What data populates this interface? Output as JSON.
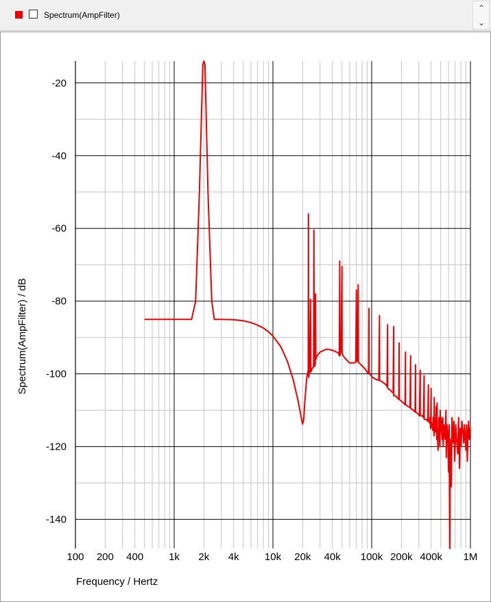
{
  "legend": {
    "label": "Spectrum(AmpFilter)",
    "swatch_color": "#ee0000",
    "scroll_up_glyph": "⌃",
    "scroll_down_glyph": "⌄"
  },
  "chart_data": {
    "type": "line",
    "xlabel": "Frequency / Hertz",
    "ylabel": "Spectrum(AmpFilter) / dB",
    "xscale": "log",
    "xlim": [
      100,
      1000000
    ],
    "ylim": [
      -148,
      -14
    ],
    "grid": true,
    "line_color": "#ee0000",
    "x_ticks": [
      {
        "value": 100,
        "label": "100"
      },
      {
        "value": 200,
        "label": "200"
      },
      {
        "value": 400,
        "label": "400"
      },
      {
        "value": 1000,
        "label": "1k"
      },
      {
        "value": 2000,
        "label": "2k"
      },
      {
        "value": 4000,
        "label": "4k"
      },
      {
        "value": 10000,
        "label": "10k"
      },
      {
        "value": 20000,
        "label": "20k"
      },
      {
        "value": 40000,
        "label": "40k"
      },
      {
        "value": 100000,
        "label": "100k"
      },
      {
        "value": 200000,
        "label": "200k"
      },
      {
        "value": 400000,
        "label": "400k"
      },
      {
        "value": 1000000,
        "label": "1M"
      }
    ],
    "y_ticks": [
      {
        "value": -20,
        "label": "-20"
      },
      {
        "value": -40,
        "label": "-40"
      },
      {
        "value": -60,
        "label": "-60"
      },
      {
        "value": -80,
        "label": "-80"
      },
      {
        "value": -100,
        "label": "-100"
      },
      {
        "value": -120,
        "label": "-120"
      },
      {
        "value": -140,
        "label": "-140"
      }
    ],
    "series": [
      {
        "points": [
          [
            500,
            -85
          ],
          [
            1000,
            -85
          ],
          [
            1300,
            -85
          ],
          [
            1500,
            -85
          ],
          [
            1650,
            -80
          ],
          [
            1800,
            -50
          ],
          [
            1950,
            -15
          ],
          [
            2000,
            -13.5
          ],
          [
            2050,
            -15
          ],
          [
            2200,
            -50
          ],
          [
            2400,
            -80
          ],
          [
            2550,
            -85
          ],
          [
            3000,
            -85
          ],
          [
            4000,
            -85.1
          ],
          [
            5000,
            -85.4
          ],
          [
            6000,
            -85.9
          ],
          [
            7000,
            -86.6
          ],
          [
            8000,
            -87.4
          ],
          [
            9000,
            -88.4
          ],
          [
            10000,
            -89.6
          ],
          [
            12000,
            -92.5
          ],
          [
            14000,
            -96.5
          ],
          [
            16000,
            -101.5
          ],
          [
            18000,
            -107.5
          ],
          [
            19500,
            -112.5
          ],
          [
            20000,
            -113.8
          ],
          [
            20500,
            -112.5
          ],
          [
            21000,
            -108
          ],
          [
            22000,
            -101
          ],
          [
            22800,
            -99
          ],
          [
            22900,
            -56
          ],
          [
            23000,
            -101
          ],
          [
            23500,
            -99.5
          ],
          [
            24000,
            -79.5
          ],
          [
            24200,
            -99.5
          ],
          [
            25000,
            -98.5
          ],
          [
            25800,
            -98
          ],
          [
            26000,
            -60.5
          ],
          [
            26200,
            -98
          ],
          [
            26800,
            -97.5
          ],
          [
            27000,
            -78
          ],
          [
            27200,
            -96
          ],
          [
            28000,
            -95
          ],
          [
            30000,
            -94
          ],
          [
            35000,
            -93.2
          ],
          [
            40000,
            -93.5
          ],
          [
            44000,
            -94
          ],
          [
            46000,
            -94.2
          ],
          [
            47000,
            -95
          ],
          [
            47500,
            -69
          ],
          [
            47700,
            -95
          ],
          [
            48500,
            -94
          ],
          [
            49000,
            -93.5
          ],
          [
            50000,
            -70.5
          ],
          [
            50200,
            -94.5
          ],
          [
            52000,
            -95.2
          ],
          [
            55000,
            -96
          ],
          [
            60000,
            -97
          ],
          [
            65000,
            -97
          ],
          [
            69000,
            -96.8
          ],
          [
            70000,
            -77
          ],
          [
            70300,
            -96.5
          ],
          [
            71500,
            -96.5
          ],
          [
            73000,
            -75.5
          ],
          [
            73300,
            -96.8
          ],
          [
            78000,
            -97.5
          ],
          [
            85000,
            -98.5
          ],
          [
            90000,
            -99.5
          ],
          [
            93000,
            -100
          ],
          [
            94000,
            -82
          ],
          [
            94300,
            -99.8
          ],
          [
            97000,
            -100.2
          ],
          [
            100000,
            -100.8
          ],
          [
            110000,
            -101.5
          ],
          [
            118000,
            -101.8
          ],
          [
            120000,
            -84
          ],
          [
            120300,
            -101.8
          ],
          [
            125000,
            -102
          ],
          [
            140000,
            -103
          ],
          [
            143000,
            -103.5
          ],
          [
            145000,
            -86.5
          ],
          [
            145300,
            -104
          ],
          [
            155000,
            -104.5
          ],
          [
            160000,
            -105
          ],
          [
            165000,
            -105.2
          ],
          [
            167000,
            -87
          ],
          [
            167300,
            -106
          ],
          [
            175000,
            -106
          ],
          [
            180000,
            -106.5
          ],
          [
            188000,
            -107
          ],
          [
            190000,
            -91.5
          ],
          [
            190300,
            -107
          ],
          [
            200000,
            -107.5
          ],
          [
            210000,
            -108
          ],
          [
            218000,
            -108.5
          ],
          [
            220000,
            -94
          ],
          [
            220300,
            -108.5
          ],
          [
            235000,
            -109
          ],
          [
            245000,
            -109.2
          ],
          [
            248000,
            -95
          ],
          [
            248300,
            -109.5
          ],
          [
            265000,
            -110
          ],
          [
            275000,
            -110.5
          ],
          [
            278000,
            -97.5
          ],
          [
            278300,
            -110.5
          ],
          [
            295000,
            -111
          ],
          [
            305000,
            -111.5
          ],
          [
            310000,
            -99
          ],
          [
            310300,
            -111.5
          ],
          [
            325000,
            -111.5
          ],
          [
            335000,
            -112
          ],
          [
            340000,
            -100.5
          ],
          [
            340300,
            -112.5
          ],
          [
            355000,
            -112.5
          ],
          [
            370000,
            -113
          ],
          [
            375000,
            -103
          ],
          [
            375300,
            -112.5
          ],
          [
            385000,
            -113.5
          ],
          [
            390000,
            -112
          ],
          [
            395000,
            -115
          ],
          [
            400000,
            -104
          ],
          [
            400300,
            -113
          ],
          [
            415000,
            -115.5
          ],
          [
            420000,
            -112
          ],
          [
            428000,
            -117
          ],
          [
            430000,
            -106.5
          ],
          [
            430300,
            -114
          ],
          [
            440000,
            -116
          ],
          [
            450000,
            -109
          ],
          [
            455000,
            -118
          ],
          [
            460000,
            -108
          ],
          [
            460300,
            -114.5
          ],
          [
            470000,
            -121
          ],
          [
            480000,
            -112
          ],
          [
            490000,
            -120
          ],
          [
            495000,
            -110
          ],
          [
            495300,
            -116
          ],
          [
            505000,
            -112
          ],
          [
            515000,
            -118
          ],
          [
            525000,
            -112
          ],
          [
            530000,
            -120
          ],
          [
            540000,
            -114
          ],
          [
            555000,
            -118
          ],
          [
            565000,
            -110
          ],
          [
            570000,
            -123
          ],
          [
            580000,
            -114
          ],
          [
            590000,
            -116
          ],
          [
            600000,
            -127
          ],
          [
            610000,
            -114
          ],
          [
            620000,
            -148
          ],
          [
            625000,
            -118
          ],
          [
            640000,
            -131
          ],
          [
            650000,
            -112
          ],
          [
            665000,
            -119
          ],
          [
            680000,
            -113
          ],
          [
            695000,
            -124
          ],
          [
            710000,
            -114
          ],
          [
            725000,
            -118
          ],
          [
            745000,
            -122
          ],
          [
            760000,
            -112
          ],
          [
            775000,
            -126
          ],
          [
            790000,
            -115
          ],
          [
            805000,
            -120
          ],
          [
            820000,
            -113
          ],
          [
            840000,
            -116
          ],
          [
            855000,
            -119
          ],
          [
            870000,
            -114
          ],
          [
            885000,
            -118
          ],
          [
            900000,
            -121
          ],
          [
            915000,
            -114
          ],
          [
            930000,
            -124
          ],
          [
            945000,
            -116
          ],
          [
            960000,
            -113
          ],
          [
            975000,
            -118
          ],
          [
            990000,
            -115
          ],
          [
            1000000,
            -116
          ]
        ]
      }
    ]
  }
}
